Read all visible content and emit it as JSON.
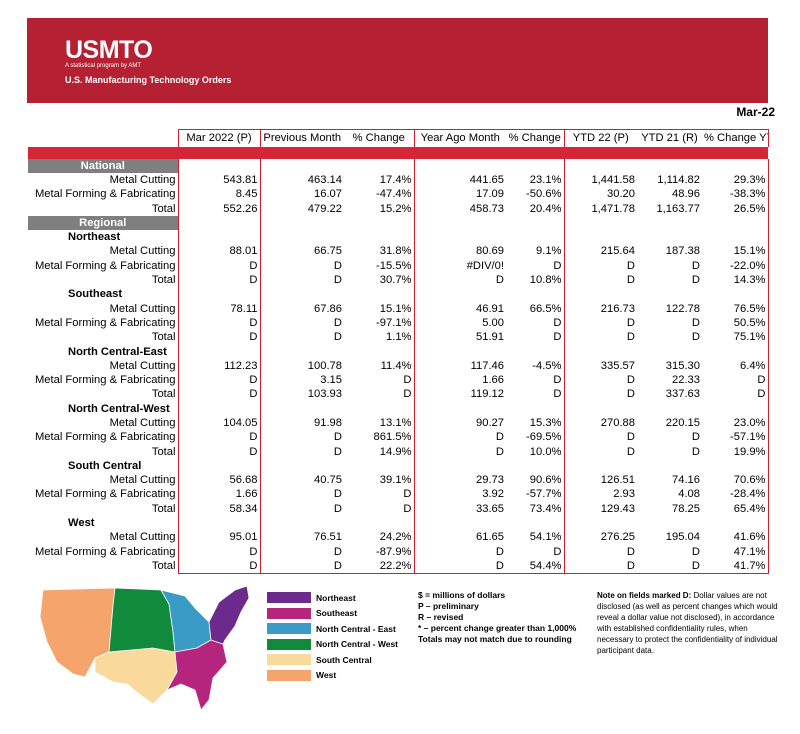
{
  "banner": {
    "logo": "USMTO",
    "logo_sub": "A statistical program by AMT",
    "title": "U.S. Manufacturing Technology Orders",
    "color": "#b52133"
  },
  "period": "Mar-22",
  "columns": [
    "Mar 2022 (P)",
    "Previous Month",
    "% Change",
    "Year Ago Month",
    "% Change",
    "YTD 22 (P)",
    "YTD 21 (R)",
    "% Change YTD"
  ],
  "sections": {
    "national": "National",
    "regional": "Regional"
  },
  "national_rows": [
    {
      "label": "Metal Cutting",
      "v": [
        "543.81",
        "463.14",
        "17.4%",
        "441.65",
        "23.1%",
        "1,441.58",
        "1,114.82",
        "29.3%"
      ]
    },
    {
      "label": "Metal Forming & Fabricating",
      "v": [
        "8.45",
        "16.07",
        "-47.4%",
        "17.09",
        "-50.6%",
        "30.20",
        "48.96",
        "-38.3%"
      ]
    },
    {
      "label": "Total",
      "v": [
        "552.26",
        "479.22",
        "15.2%",
        "458.73",
        "20.4%",
        "1,471.78",
        "1,163.77",
        "26.5%"
      ]
    }
  ],
  "regions": [
    {
      "name": "Northeast",
      "rows": [
        {
          "label": "Metal Cutting",
          "v": [
            "88.01",
            "66.75",
            "31.8%",
            "80.69",
            "9.1%",
            "215.64",
            "187.38",
            "15.1%"
          ]
        },
        {
          "label": "Metal Forming & Fabricating",
          "v": [
            "D",
            "D",
            "-15.5%",
            "#DIV/0!",
            "D",
            "D",
            "D",
            "-22.0%"
          ]
        },
        {
          "label": "Total",
          "v": [
            "D",
            "D",
            "30.7%",
            "D",
            "10.8%",
            "D",
            "D",
            "14.3%"
          ]
        }
      ]
    },
    {
      "name": "Southeast",
      "rows": [
        {
          "label": "Metal Cutting",
          "v": [
            "78.11",
            "67.86",
            "15.1%",
            "46.91",
            "66.5%",
            "216.73",
            "122.78",
            "76.5%"
          ]
        },
        {
          "label": "Metal Forming & Fabricating",
          "v": [
            "D",
            "D",
            "-97.1%",
            "5.00",
            "D",
            "D",
            "D",
            "50.5%"
          ]
        },
        {
          "label": "Total",
          "v": [
            "D",
            "D",
            "1.1%",
            "51.91",
            "D",
            "D",
            "D",
            "75.1%"
          ]
        }
      ]
    },
    {
      "name": "North Central-East",
      "rows": [
        {
          "label": "Metal Cutting",
          "v": [
            "112.23",
            "100.78",
            "11.4%",
            "117.46",
            "-4.5%",
            "335.57",
            "315.30",
            "6.4%"
          ]
        },
        {
          "label": "Metal Forming & Fabricating",
          "v": [
            "D",
            "3.15",
            "D",
            "1.66",
            "D",
            "D",
            "22.33",
            "D"
          ]
        },
        {
          "label": "Total",
          "v": [
            "D",
            "103.93",
            "D",
            "119.12",
            "D",
            "D",
            "337.63",
            "D"
          ]
        }
      ]
    },
    {
      "name": "North Central-West",
      "rows": [
        {
          "label": "Metal Cutting",
          "v": [
            "104.05",
            "91.98",
            "13.1%",
            "90.27",
            "15.3%",
            "270.88",
            "220.15",
            "23.0%"
          ]
        },
        {
          "label": "Metal Forming & Fabricating",
          "v": [
            "D",
            "D",
            "861.5%",
            "D",
            "-69.5%",
            "D",
            "D",
            "-57.1%"
          ]
        },
        {
          "label": "Total",
          "v": [
            "D",
            "D",
            "14.9%",
            "D",
            "10.0%",
            "D",
            "D",
            "19.9%"
          ]
        }
      ]
    },
    {
      "name": "South Central",
      "rows": [
        {
          "label": "Metal Cutting",
          "v": [
            "56.68",
            "40.75",
            "39.1%",
            "29.73",
            "90.6%",
            "126.51",
            "74.16",
            "70.6%"
          ]
        },
        {
          "label": "Metal Forming & Fabricating",
          "v": [
            "1.66",
            "D",
            "D",
            "3.92",
            "-57.7%",
            "2.93",
            "4.08",
            "-28.4%"
          ]
        },
        {
          "label": "Total",
          "v": [
            "58.34",
            "D",
            "D",
            "33.65",
            "73.4%",
            "129.43",
            "78.25",
            "65.4%"
          ]
        }
      ]
    },
    {
      "name": "West",
      "rows": [
        {
          "label": "Metal Cutting",
          "v": [
            "95.01",
            "76.51",
            "24.2%",
            "61.65",
            "54.1%",
            "276.25",
            "195.04",
            "41.6%"
          ]
        },
        {
          "label": "Metal Forming & Fabricating",
          "v": [
            "D",
            "D",
            "-87.9%",
            "D",
            "D",
            "D",
            "D",
            "47.1%"
          ]
        },
        {
          "label": "Total",
          "v": [
            "D",
            "D",
            "22.2%",
            "D",
            "54.4%",
            "D",
            "D",
            "41.7%"
          ]
        }
      ]
    }
  ],
  "legend": [
    {
      "label": "Northeast",
      "color": "#6b2a8c"
    },
    {
      "label": "Southeast",
      "color": "#b5257e"
    },
    {
      "label": "North Central - East",
      "color": "#3a9cc6"
    },
    {
      "label": "North Central - West",
      "color": "#118a3c"
    },
    {
      "label": "South Central",
      "color": "#f9d99c"
    },
    {
      "label": "West",
      "color": "#f5a46b"
    }
  ],
  "notes_left": [
    "$ = millions of dollars",
    "P – preliminary",
    "R – revised",
    "* – percent change greater than 1,000%",
    "Totals may not match due to rounding"
  ],
  "notes_right": {
    "lead": "Note on fields marked D:",
    "text": " Dollar values are not disclosed (as well as percent changes which would reveal a dollar value not disclosed), in accordance with established confidentiality rules, when necessary to protect the confidentiality of individual participant data."
  }
}
